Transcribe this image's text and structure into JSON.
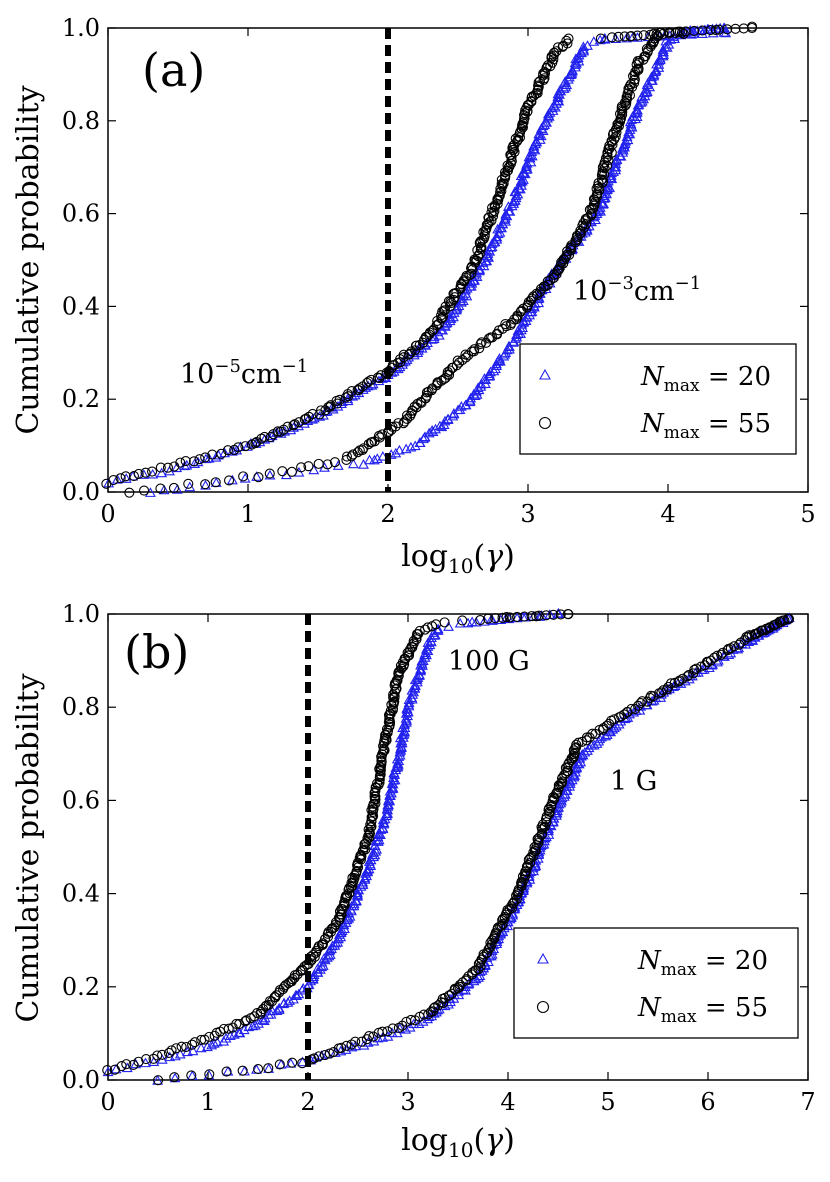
{
  "chart_data": [
    {
      "type": "scatter",
      "panel_label": "(a)",
      "xlabel": "log10(γ)",
      "ylabel": "Cumulative probability",
      "xlim": [
        0,
        5
      ],
      "ylim": [
        0.0,
        1.0
      ],
      "xticks": [
        "0",
        "1",
        "2",
        "3",
        "4",
        "5"
      ],
      "yticks": [
        "0.0",
        "0.2",
        "0.4",
        "0.6",
        "0.8",
        "1.0"
      ],
      "vline_x": 2,
      "legend": {
        "entries": [
          "N_max = 20",
          "N_max = 55"
        ],
        "position": "lower-right"
      },
      "annotations": [
        {
          "text": "10⁻⁵cm⁻¹",
          "x": 0.52,
          "y": 0.25
        },
        {
          "text": "10⁻³cm⁻¹",
          "x": 3.42,
          "y": 0.42
        }
      ],
      "series": [
        {
          "name": "N_max = 20",
          "marker": "triangle",
          "color": "#2222ee",
          "curves": [
            [
              [
                0.0,
                0.02
              ],
              [
                0.5,
                0.05
              ],
              [
                1.0,
                0.1
              ],
              [
                1.5,
                0.16
              ],
              [
                2.0,
                0.25
              ],
              [
                2.4,
                0.35
              ],
              [
                2.7,
                0.5
              ],
              [
                2.9,
                0.63
              ],
              [
                3.1,
                0.78
              ],
              [
                3.3,
                0.9
              ],
              [
                3.4,
                0.96
              ],
              [
                3.55,
                0.975
              ],
              [
                4.4,
                0.99
              ]
            ],
            [
              [
                0.3,
                0.0
              ],
              [
                0.8,
                0.02
              ],
              [
                1.3,
                0.04
              ],
              [
                1.8,
                0.06
              ],
              [
                2.2,
                0.1
              ],
              [
                2.6,
                0.2
              ],
              [
                2.95,
                0.35
              ],
              [
                3.2,
                0.48
              ],
              [
                3.5,
                0.6
              ],
              [
                3.75,
                0.8
              ],
              [
                3.9,
                0.9
              ],
              [
                4.0,
                0.97
              ],
              [
                4.1,
                0.99
              ],
              [
                4.4,
                1.0
              ]
            ]
          ]
        },
        {
          "name": "N_max = 55",
          "marker": "circle",
          "color": "#000000",
          "curves": [
            [
              [
                0.0,
                0.02
              ],
              [
                0.5,
                0.06
              ],
              [
                1.0,
                0.1
              ],
              [
                1.5,
                0.17
              ],
              [
                2.0,
                0.26
              ],
              [
                2.3,
                0.34
              ],
              [
                2.6,
                0.48
              ],
              [
                2.8,
                0.65
              ],
              [
                3.0,
                0.83
              ],
              [
                3.2,
                0.95
              ],
              [
                3.3,
                0.975
              ],
              [
                3.6,
                0.98
              ],
              [
                4.1,
                0.99
              ]
            ],
            [
              [
                0.15,
                0.0
              ],
              [
                0.7,
                0.02
              ],
              [
                1.2,
                0.04
              ],
              [
                1.7,
                0.07
              ],
              [
                2.1,
                0.15
              ],
              [
                2.5,
                0.28
              ],
              [
                2.9,
                0.37
              ],
              [
                3.2,
                0.47
              ],
              [
                3.45,
                0.6
              ],
              [
                3.65,
                0.8
              ],
              [
                3.8,
                0.93
              ],
              [
                3.95,
                0.99
              ],
              [
                4.6,
                1.0
              ]
            ]
          ]
        }
      ]
    },
    {
      "type": "scatter",
      "panel_label": "(b)",
      "xlabel": "log10(γ)",
      "ylabel": "Cumulative probability",
      "xlim": [
        0,
        7
      ],
      "ylim": [
        0.0,
        1.0
      ],
      "xticks": [
        "0",
        "1",
        "2",
        "3",
        "4",
        "5",
        "6",
        "7"
      ],
      "yticks": [
        "0.0",
        "0.2",
        "0.4",
        "0.6",
        "0.8",
        "1.0"
      ],
      "vline_x": 2,
      "legend": {
        "entries": [
          "N_max = 20",
          "N_max = 55"
        ],
        "position": "lower-right"
      },
      "annotations": [
        {
          "text": "100 G",
          "x": 3.35,
          "y": 0.86
        },
        {
          "text": "1 G",
          "x": 4.95,
          "y": 0.68
        }
      ],
      "series": [
        {
          "name": "N_max = 20",
          "marker": "triangle",
          "color": "#2222ee",
          "curves": [
            [
              [
                0.0,
                0.02
              ],
              [
                0.5,
                0.04
              ],
              [
                1.0,
                0.07
              ],
              [
                1.5,
                0.12
              ],
              [
                2.0,
                0.2
              ],
              [
                2.3,
                0.3
              ],
              [
                2.6,
                0.45
              ],
              [
                2.8,
                0.58
              ],
              [
                3.0,
                0.8
              ],
              [
                3.2,
                0.93
              ],
              [
                3.3,
                0.97
              ],
              [
                3.6,
                0.98
              ],
              [
                4.5,
                1.0
              ]
            ],
            [
              [
                0.5,
                0.0
              ],
              [
                1.4,
                0.02
              ],
              [
                2.0,
                0.04
              ],
              [
                2.6,
                0.08
              ],
              [
                3.2,
                0.13
              ],
              [
                3.7,
                0.22
              ],
              [
                4.1,
                0.38
              ],
              [
                4.5,
                0.58
              ],
              [
                4.75,
                0.7
              ],
              [
                5.2,
                0.78
              ],
              [
                5.8,
                0.86
              ],
              [
                6.4,
                0.94
              ],
              [
                6.8,
                0.99
              ]
            ]
          ]
        },
        {
          "name": "N_max = 55",
          "marker": "circle",
          "color": "#000000",
          "curves": [
            [
              [
                0.0,
                0.02
              ],
              [
                0.5,
                0.05
              ],
              [
                1.0,
                0.09
              ],
              [
                1.5,
                0.14
              ],
              [
                2.0,
                0.25
              ],
              [
                2.3,
                0.34
              ],
              [
                2.6,
                0.52
              ],
              [
                2.75,
                0.7
              ],
              [
                2.9,
                0.87
              ],
              [
                3.1,
                0.96
              ],
              [
                3.3,
                0.98
              ],
              [
                3.8,
                0.99
              ],
              [
                4.6,
                1.0
              ]
            ],
            [
              [
                0.5,
                0.0
              ],
              [
                1.4,
                0.02
              ],
              [
                2.0,
                0.04
              ],
              [
                2.6,
                0.09
              ],
              [
                3.2,
                0.14
              ],
              [
                3.7,
                0.24
              ],
              [
                4.1,
                0.4
              ],
              [
                4.45,
                0.6
              ],
              [
                4.7,
                0.72
              ],
              [
                5.2,
                0.79
              ],
              [
                5.8,
                0.87
              ],
              [
                6.4,
                0.95
              ],
              [
                6.8,
                0.99
              ]
            ]
          ]
        }
      ]
    }
  ]
}
